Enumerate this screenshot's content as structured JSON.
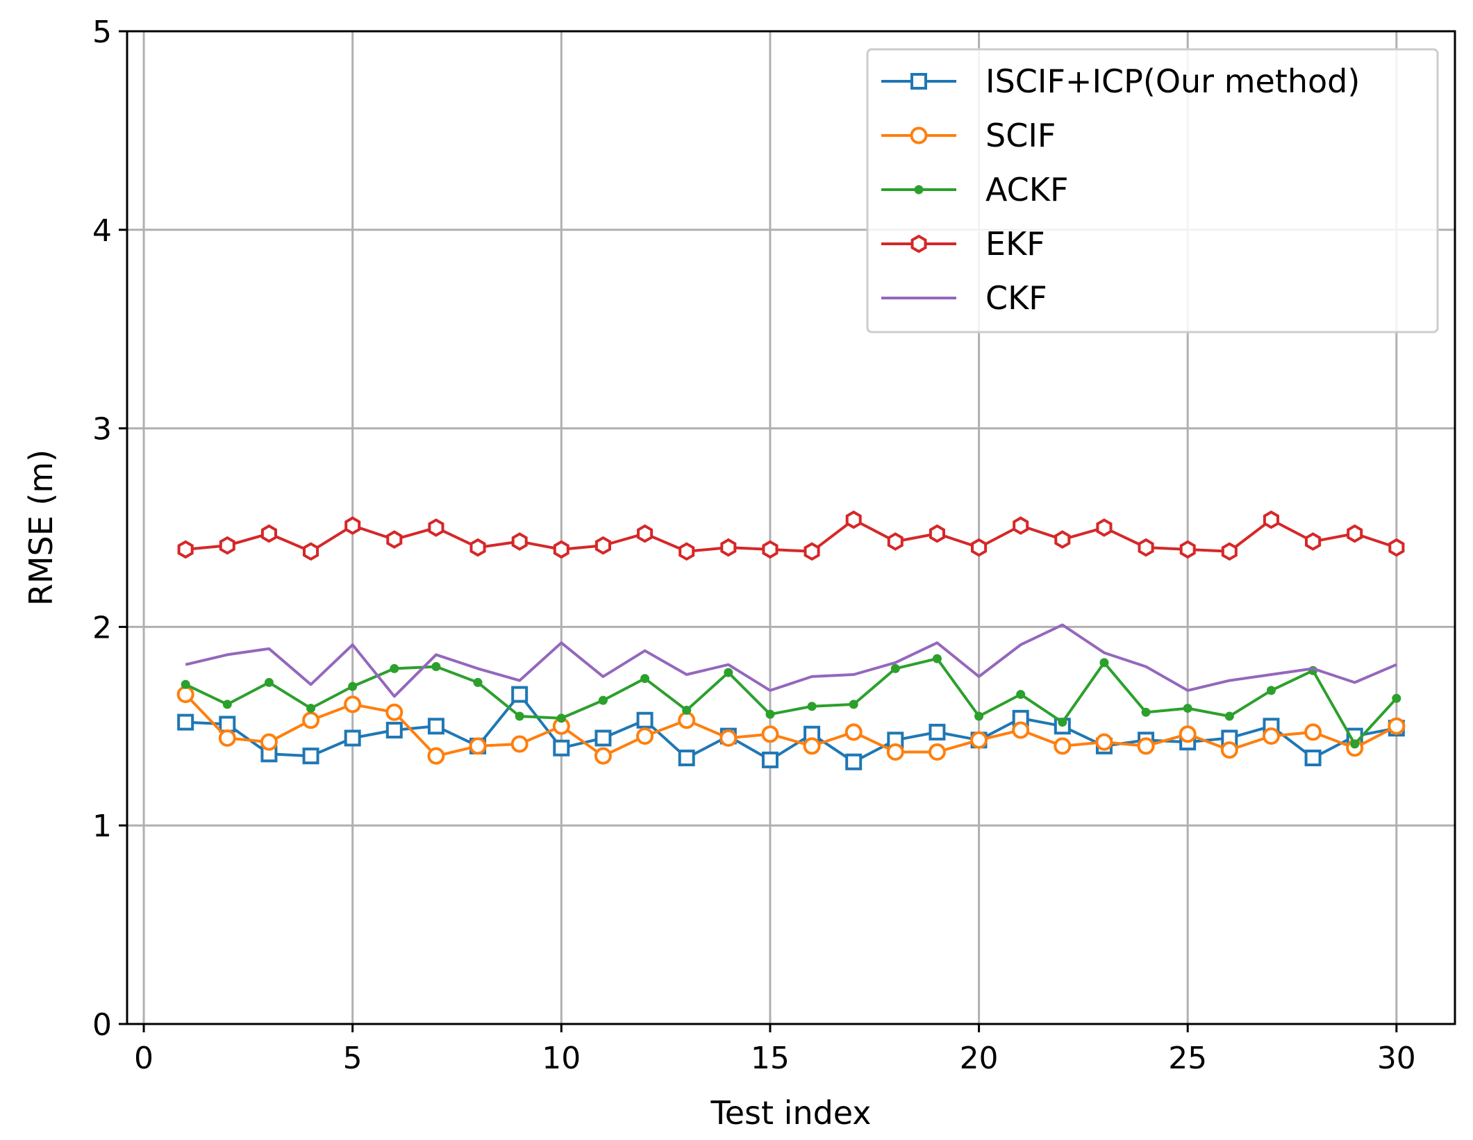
{
  "chart_data": {
    "type": "line",
    "title": "",
    "xlabel": "Test index",
    "ylabel": "RMSE (m)",
    "xlim": [
      -0.4,
      31.4
    ],
    "ylim": [
      0,
      5
    ],
    "xticks": [
      0,
      5,
      10,
      15,
      20,
      25,
      30
    ],
    "yticks": [
      0,
      1,
      2,
      3,
      4,
      5
    ],
    "xtick_labels": [
      "0",
      "5",
      "10",
      "15",
      "20",
      "25",
      "30"
    ],
    "ytick_labels": [
      "0",
      "1",
      "2",
      "3",
      "4",
      "5"
    ],
    "grid": true,
    "legend_position": "top-right",
    "x": [
      1,
      2,
      3,
      4,
      5,
      6,
      7,
      8,
      9,
      10,
      11,
      12,
      13,
      14,
      15,
      16,
      17,
      18,
      19,
      20,
      21,
      22,
      23,
      24,
      25,
      26,
      27,
      28,
      29,
      30
    ],
    "series": [
      {
        "name": "ISCIF+ICP(Our method)",
        "color": "#1f77b4",
        "marker": "square",
        "values": [
          1.52,
          1.51,
          1.36,
          1.35,
          1.44,
          1.48,
          1.5,
          1.4,
          1.66,
          1.39,
          1.44,
          1.53,
          1.34,
          1.45,
          1.33,
          1.46,
          1.32,
          1.43,
          1.47,
          1.43,
          1.54,
          1.5,
          1.4,
          1.43,
          1.42,
          1.44,
          1.5,
          1.34,
          1.45,
          1.49
        ]
      },
      {
        "name": "SCIF",
        "color": "#ff7f0e",
        "marker": "circle",
        "values": [
          1.66,
          1.44,
          1.42,
          1.53,
          1.61,
          1.57,
          1.35,
          1.4,
          1.41,
          1.5,
          1.35,
          1.45,
          1.53,
          1.44,
          1.46,
          1.4,
          1.47,
          1.37,
          1.37,
          1.43,
          1.48,
          1.4,
          1.42,
          1.4,
          1.46,
          1.38,
          1.45,
          1.47,
          1.39,
          1.5
        ]
      },
      {
        "name": "ACKF",
        "color": "#2ca02c",
        "marker": "dot",
        "values": [
          1.71,
          1.61,
          1.72,
          1.59,
          1.7,
          1.79,
          1.8,
          1.72,
          1.55,
          1.54,
          1.63,
          1.74,
          1.58,
          1.77,
          1.56,
          1.6,
          1.61,
          1.79,
          1.84,
          1.55,
          1.66,
          1.52,
          1.82,
          1.57,
          1.59,
          1.55,
          1.68,
          1.78,
          1.41,
          1.64
        ]
      },
      {
        "name": "EKF",
        "color": "#d62728",
        "marker": "hexagon",
        "values": [
          2.39,
          2.41,
          2.47,
          2.38,
          2.51,
          2.44,
          2.5,
          2.4,
          2.43,
          2.39,
          2.41,
          2.47,
          2.38,
          2.4,
          2.39,
          2.38,
          2.54,
          2.43,
          2.47,
          2.4,
          2.51,
          2.44,
          2.5,
          2.4,
          2.39,
          2.38,
          2.54,
          2.43,
          2.47,
          2.4
        ]
      },
      {
        "name": "CKF",
        "color": "#9467bd",
        "marker": "none",
        "values": [
          1.81,
          1.86,
          1.89,
          1.71,
          1.91,
          1.65,
          1.86,
          1.79,
          1.73,
          1.92,
          1.75,
          1.88,
          1.76,
          1.81,
          1.68,
          1.75,
          1.76,
          1.82,
          1.92,
          1.75,
          1.91,
          2.01,
          1.87,
          1.8,
          1.68,
          1.73,
          1.76,
          1.79,
          1.72,
          1.81
        ]
      }
    ]
  }
}
